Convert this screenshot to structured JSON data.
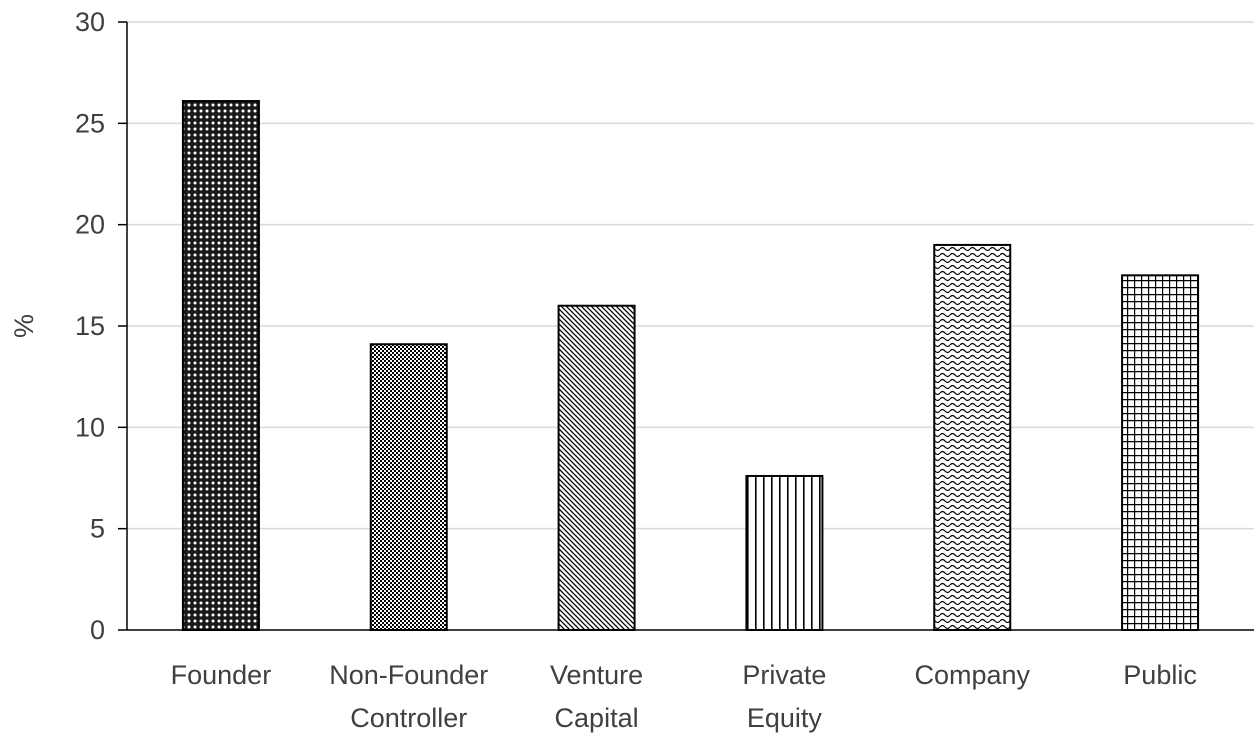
{
  "chart_data": {
    "type": "bar",
    "title": "",
    "xlabel": "",
    "ylabel": "%",
    "ylim": [
      0,
      30
    ],
    "yticks": [
      0,
      5,
      10,
      15,
      20,
      25,
      30
    ],
    "grid": true,
    "categories": [
      [
        "Founder"
      ],
      [
        "Non-Founder",
        "Controller"
      ],
      [
        "Venture",
        "Capital"
      ],
      [
        "Private",
        "Equity"
      ],
      [
        "Company"
      ],
      [
        "Public"
      ]
    ],
    "values": [
      26.1,
      14.1,
      16.0,
      7.6,
      19.0,
      17.5
    ],
    "patterns": [
      "dots",
      "dense-checker",
      "diagonal",
      "vertical",
      "wave",
      "grid"
    ],
    "colors": {
      "bar_fill": "#ffffff",
      "bar_stroke": "#000000",
      "grid": "#d9d9d9",
      "axis": "#000000",
      "text": "#404040"
    }
  }
}
